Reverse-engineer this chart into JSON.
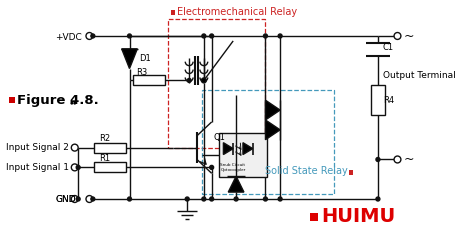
{
  "bg_color": "#ffffff",
  "title_relay": "Electromechanical Relay",
  "title_ssr": "Solid State Relay",
  "label_figure": "Figure 4.8.",
  "label_vdc": "+VDC",
  "label_gnd": "GND",
  "label_input1": "Input Signal 1",
  "label_input2": "Input Signal 2",
  "label_output": "Output Terminal",
  "label_d1": "D1",
  "label_r1": "R1",
  "label_r2": "R2",
  "label_r3": "R3",
  "label_r4": "R4",
  "label_c1": "C1",
  "label_q1": "Q1",
  "label_huimu": "HUIMU",
  "color_dashed_relay": "#cc2222",
  "color_dashed_ssr": "#4499bb",
  "color_line": "#111111",
  "color_red": "#cc0000",
  "color_blue": "#4499bb",
  "color_huimu_red": "#dd0000"
}
